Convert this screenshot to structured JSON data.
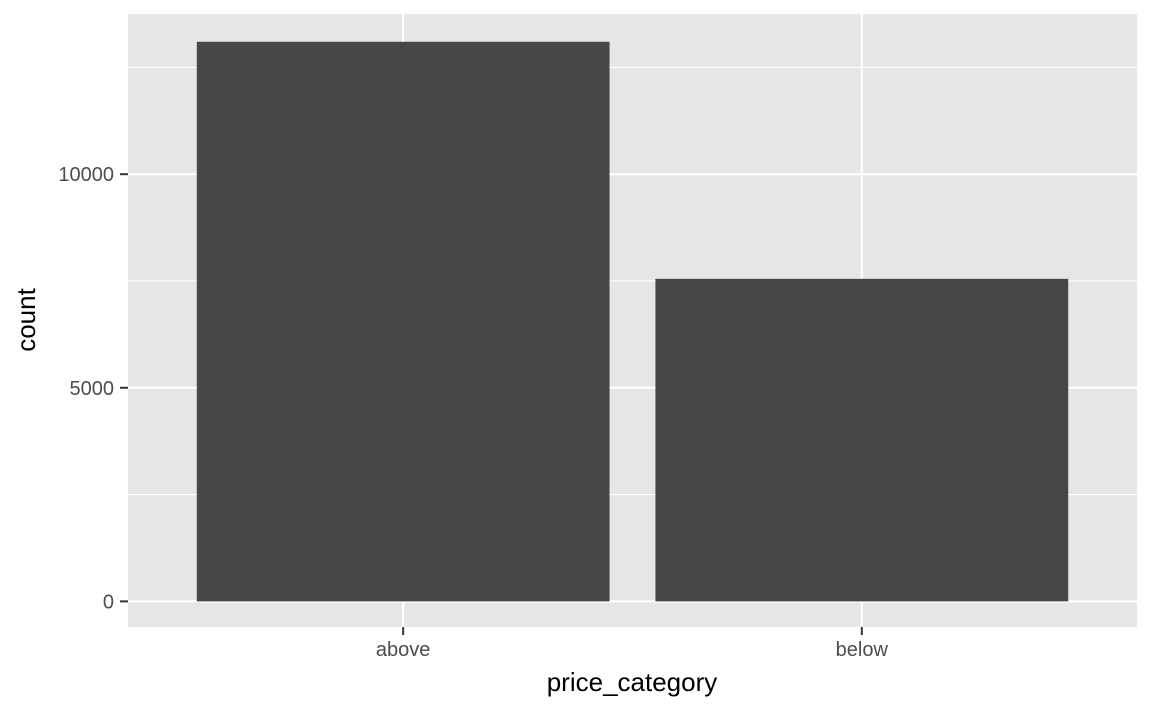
{
  "chart_data": {
    "type": "bar",
    "categories": [
      "above",
      "below"
    ],
    "values": [
      13100,
      7550
    ],
    "xlabel": "price_category",
    "ylabel": "count",
    "ylim": [
      -600,
      13750
    ],
    "yticks": [
      0,
      5000,
      10000
    ],
    "y_minor_ticks": [
      2500,
      7500,
      12500
    ],
    "tick_labels": [
      "0",
      "5000",
      "10000"
    ],
    "grid": true,
    "legend": "none"
  },
  "colors": {
    "panel_background": "#e6e6e6",
    "grid_line": "#ffffff",
    "bar_fill": "#474747",
    "tick_mark": "#333333",
    "tick_text": "#4d4d4d",
    "axis_title": "#000000"
  }
}
